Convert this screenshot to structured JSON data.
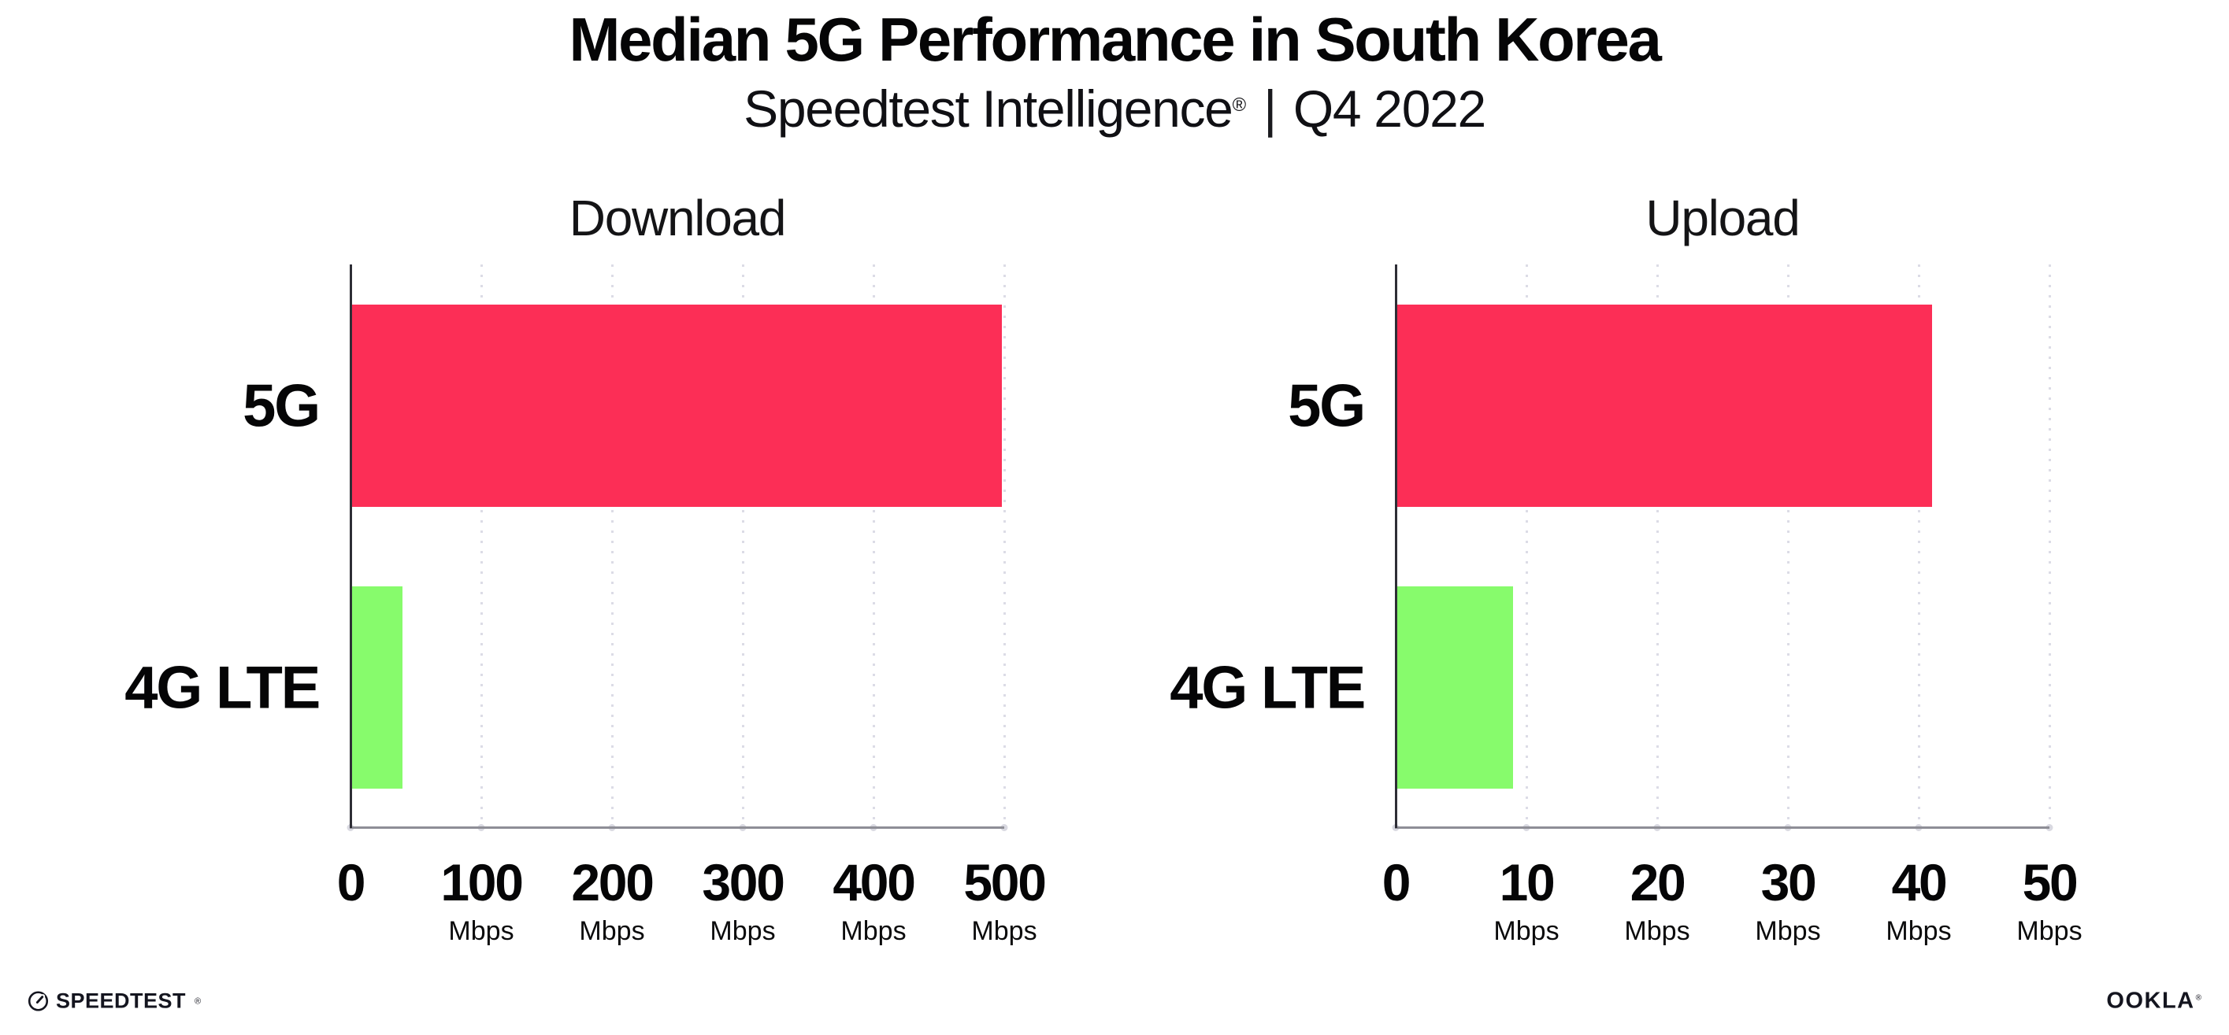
{
  "header": {
    "title": "Median 5G Performance in South Korea",
    "subtitle_brand": "Speedtest Intelligence",
    "subtitle_reg": "®",
    "subtitle_divider": "|",
    "subtitle_period": "Q4 2022"
  },
  "chart_data": [
    {
      "type": "bar",
      "orientation": "horizontal",
      "title": "Download",
      "categories": [
        "5G",
        "4G LTE"
      ],
      "values": [
        498,
        40
      ],
      "unit": "Mbps",
      "xlim": [
        0,
        500
      ],
      "xticks": [
        0,
        100,
        200,
        300,
        400,
        500
      ],
      "bar_colors": [
        "#FC2E56",
        "#87FB6C"
      ],
      "grid": "dotted-vertical",
      "legend": "none",
      "values_estimated_from_gridlines": true
    },
    {
      "type": "bar",
      "orientation": "horizontal",
      "title": "Upload",
      "categories": [
        "5G",
        "4G LTE"
      ],
      "values": [
        41,
        9
      ],
      "unit": "Mbps",
      "xlim": [
        0,
        50
      ],
      "xticks": [
        0,
        10,
        20,
        30,
        40,
        50
      ],
      "bar_colors": [
        "#FC2E56",
        "#87FB6C"
      ],
      "grid": "dotted-vertical",
      "legend": "none",
      "values_estimated_from_gridlines": true
    }
  ],
  "footer": {
    "speedtest_label": "SPEEDTEST",
    "speedtest_mark": "®",
    "ookla_label": "OOKLA",
    "ookla_mark": "®"
  },
  "colors": {
    "bar_5g": "#FC2E56",
    "bar_4g_lte": "#87FB6C",
    "gridline": "#DCDCE6",
    "x_axis": "#8E8E96",
    "y_axis": "#2E2E36",
    "text": "#0B0B0C",
    "background": "#FFFFFF"
  }
}
